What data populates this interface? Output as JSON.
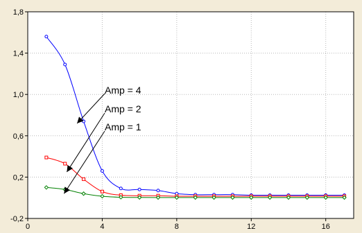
{
  "chart_data": {
    "type": "line",
    "title": "",
    "xlabel": "",
    "ylabel": "",
    "xlim": [
      0,
      17.5
    ],
    "ylim": [
      -0.2,
      1.8
    ],
    "x_ticks": [
      "0",
      "4",
      "8",
      "12",
      "16"
    ],
    "x_tick_values": [
      0,
      4,
      8,
      12,
      16
    ],
    "y_ticks": [
      "-0,2",
      "0,2",
      "0,6",
      "1,0",
      "1,4",
      "1,8"
    ],
    "y_tick_values": [
      -0.2,
      0.2,
      0.6,
      1.0,
      1.4,
      1.8
    ],
    "grid": true,
    "series": [
      {
        "color": "#0000ff",
        "marker": "circle",
        "x": [
          1,
          2,
          3,
          4,
          5,
          6,
          7,
          8,
          9,
          10,
          11,
          12,
          13,
          14,
          15,
          16,
          17
        ],
        "y": [
          1.56,
          1.29,
          0.74,
          0.26,
          0.09,
          0.08,
          0.07,
          0.04,
          0.03,
          0.03,
          0.03,
          0.025,
          0.025,
          0.025,
          0.025,
          0.025,
          0.025
        ]
      },
      {
        "color": "#ff0000",
        "marker": "square",
        "x": [
          1,
          2,
          3,
          4,
          5,
          6,
          7,
          8,
          9,
          10,
          11,
          12,
          13,
          14,
          15,
          16,
          17
        ],
        "y": [
          0.39,
          0.33,
          0.18,
          0.06,
          0.025,
          0.02,
          0.02,
          0.015,
          0.015,
          0.015,
          0.015,
          0.015,
          0.015,
          0.015,
          0.015,
          0.015,
          0.015
        ]
      },
      {
        "color": "#008000",
        "marker": "diamond",
        "x": [
          1,
          2,
          3,
          4,
          5,
          6,
          7,
          8,
          9,
          10,
          11,
          12,
          13,
          14,
          15,
          16,
          17
        ],
        "y": [
          0.1,
          0.08,
          0.04,
          0.015,
          0.005,
          0.003,
          0.002,
          0.002,
          0.002,
          0.002,
          0.002,
          0.002,
          0.002,
          0.002,
          0.002,
          0.002,
          0.002
        ]
      }
    ],
    "annotations": [
      {
        "text": "Amp = 4",
        "target": [
          2.65,
          0.72
        ]
      },
      {
        "text": "Amp = 2",
        "target": [
          2.1,
          0.25
        ]
      },
      {
        "text": "Amp = 1",
        "target": [
          1.95,
          0.04
        ]
      }
    ]
  }
}
